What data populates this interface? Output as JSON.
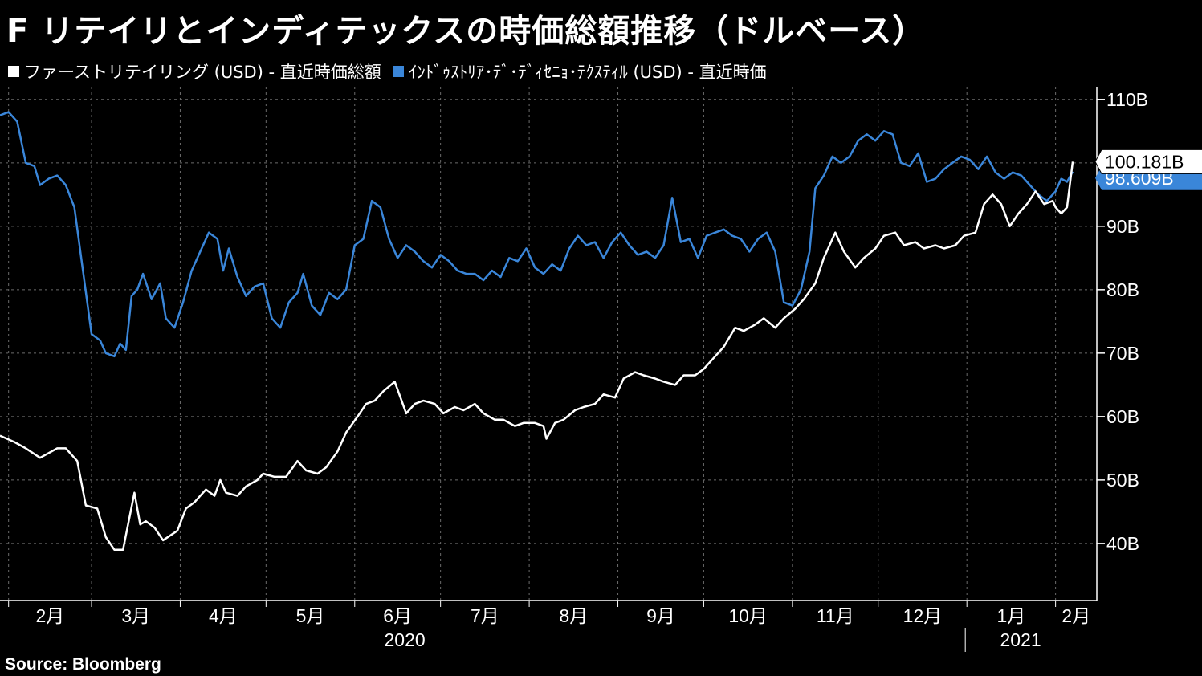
{
  "title": "F リテイリとインディテックスの時価総額推移（ドルベース）",
  "source": "Source:  Bloomberg",
  "colors": {
    "background": "#000000",
    "fast_retailing": "#ffffff",
    "inditex": "#3a86d9",
    "grid": "#6b6b6b"
  },
  "chart_data": {
    "type": "line",
    "title": "F リテイリとインディテックスの時価総額推移（ドルベース）",
    "xlabel": "",
    "ylabel": "",
    "ylim": [
      31,
      112
    ],
    "y_ticks": [
      40,
      50,
      60,
      70,
      80,
      90,
      100,
      110
    ],
    "y_tick_labels": [
      "40B",
      "50B",
      "60B",
      "70B",
      "80B",
      "90B",
      "100B",
      "110B"
    ],
    "x_range": [
      "2020-01-29",
      "2021-02-07"
    ],
    "month_ticks": [
      "2020-02-01",
      "2020-03-01",
      "2020-04-01",
      "2020-05-01",
      "2020-06-01",
      "2020-07-01",
      "2020-08-01",
      "2020-09-01",
      "2020-10-01",
      "2020-11-01",
      "2020-12-01",
      "2021-01-01",
      "2021-02-01"
    ],
    "month_labels": [
      "2月",
      "3月",
      "4月",
      "5月",
      "6月",
      "7月",
      "8月",
      "9月",
      "10月",
      "11月",
      "12月",
      "1月",
      "2月"
    ],
    "year_labels": [
      "2020",
      "2021"
    ],
    "grid": true,
    "legend_position": "top-left",
    "last_value_labels": [
      "100.181B",
      "98.609B"
    ],
    "series": [
      {
        "name": "ファーストリテイリング (USD) - 直近時価総額",
        "color": "#ffffff",
        "points": [
          [
            "2020-01-29",
            57.0
          ],
          [
            "2020-02-03",
            56.0
          ],
          [
            "2020-02-07",
            55.0
          ],
          [
            "2020-02-12",
            53.5
          ],
          [
            "2020-02-14",
            54.0
          ],
          [
            "2020-02-18",
            55.0
          ],
          [
            "2020-02-21",
            55.0
          ],
          [
            "2020-02-25",
            53.0
          ],
          [
            "2020-02-28",
            46.0
          ],
          [
            "2020-03-03",
            45.5
          ],
          [
            "2020-03-06",
            41.0
          ],
          [
            "2020-03-09",
            39.0
          ],
          [
            "2020-03-12",
            39.0
          ],
          [
            "2020-03-16",
            48.0
          ],
          [
            "2020-03-18",
            43.0
          ],
          [
            "2020-03-20",
            43.5
          ],
          [
            "2020-03-23",
            42.5
          ],
          [
            "2020-03-26",
            40.5
          ],
          [
            "2020-03-31",
            42.0
          ],
          [
            "2020-04-03",
            45.5
          ],
          [
            "2020-04-06",
            46.5
          ],
          [
            "2020-04-08",
            47.5
          ],
          [
            "2020-04-10",
            48.5
          ],
          [
            "2020-04-13",
            47.5
          ],
          [
            "2020-04-15",
            50.0
          ],
          [
            "2020-04-17",
            48.0
          ],
          [
            "2020-04-21",
            47.5
          ],
          [
            "2020-04-24",
            49.0
          ],
          [
            "2020-04-28",
            50.0
          ],
          [
            "2020-04-30",
            51.0
          ],
          [
            "2020-05-04",
            50.5
          ],
          [
            "2020-05-08",
            50.5
          ],
          [
            "2020-05-12",
            53.0
          ],
          [
            "2020-05-15",
            51.5
          ],
          [
            "2020-05-19",
            51.0
          ],
          [
            "2020-05-22",
            52.0
          ],
          [
            "2020-05-26",
            54.5
          ],
          [
            "2020-05-29",
            57.5
          ],
          [
            "2020-06-02",
            60.0
          ],
          [
            "2020-06-05",
            62.0
          ],
          [
            "2020-06-08",
            62.5
          ],
          [
            "2020-06-11",
            64.0
          ],
          [
            "2020-06-15",
            65.5
          ],
          [
            "2020-06-17",
            63.0
          ],
          [
            "2020-06-19",
            60.5
          ],
          [
            "2020-06-22",
            62.0
          ],
          [
            "2020-06-25",
            62.5
          ],
          [
            "2020-06-29",
            62.0
          ],
          [
            "2020-07-02",
            60.5
          ],
          [
            "2020-07-06",
            61.5
          ],
          [
            "2020-07-09",
            61.0
          ],
          [
            "2020-07-13",
            62.0
          ],
          [
            "2020-07-16",
            60.5
          ],
          [
            "2020-07-20",
            59.5
          ],
          [
            "2020-07-23",
            59.5
          ],
          [
            "2020-07-27",
            58.5
          ],
          [
            "2020-07-30",
            59.0
          ],
          [
            "2020-08-03",
            59.0
          ],
          [
            "2020-08-06",
            58.5
          ],
          [
            "2020-08-07",
            56.5
          ],
          [
            "2020-08-10",
            59.0
          ],
          [
            "2020-08-13",
            59.5
          ],
          [
            "2020-08-17",
            61.0
          ],
          [
            "2020-08-20",
            61.5
          ],
          [
            "2020-08-24",
            62.0
          ],
          [
            "2020-08-27",
            63.5
          ],
          [
            "2020-08-31",
            63.0
          ],
          [
            "2020-09-03",
            66.0
          ],
          [
            "2020-09-07",
            67.0
          ],
          [
            "2020-09-10",
            66.5
          ],
          [
            "2020-09-14",
            66.0
          ],
          [
            "2020-09-17",
            65.5
          ],
          [
            "2020-09-21",
            65.0
          ],
          [
            "2020-09-24",
            66.5
          ],
          [
            "2020-09-28",
            66.5
          ],
          [
            "2020-10-01",
            67.5
          ],
          [
            "2020-10-05",
            69.5
          ],
          [
            "2020-10-08",
            71.0
          ],
          [
            "2020-10-12",
            74.0
          ],
          [
            "2020-10-15",
            73.5
          ],
          [
            "2020-10-19",
            74.5
          ],
          [
            "2020-10-22",
            75.5
          ],
          [
            "2020-10-26",
            74.0
          ],
          [
            "2020-10-29",
            75.5
          ],
          [
            "2020-11-02",
            77.0
          ],
          [
            "2020-11-05",
            78.5
          ],
          [
            "2020-11-09",
            81.0
          ],
          [
            "2020-11-12",
            85.0
          ],
          [
            "2020-11-16",
            89.0
          ],
          [
            "2020-11-19",
            86.0
          ],
          [
            "2020-11-23",
            83.5
          ],
          [
            "2020-11-26",
            85.0
          ],
          [
            "2020-11-30",
            86.5
          ],
          [
            "2020-12-03",
            88.5
          ],
          [
            "2020-12-07",
            89.0
          ],
          [
            "2020-12-10",
            87.0
          ],
          [
            "2020-12-14",
            87.5
          ],
          [
            "2020-12-17",
            86.5
          ],
          [
            "2020-12-21",
            87.0
          ],
          [
            "2020-12-24",
            86.5
          ],
          [
            "2020-12-28",
            87.0
          ],
          [
            "2020-12-31",
            88.5
          ],
          [
            "2021-01-04",
            89.0
          ],
          [
            "2021-01-07",
            93.5
          ],
          [
            "2021-01-10",
            95.0
          ],
          [
            "2021-01-13",
            93.5
          ],
          [
            "2021-01-16",
            90.0
          ],
          [
            "2021-01-19",
            92.0
          ],
          [
            "2021-01-22",
            93.5
          ],
          [
            "2021-01-25",
            95.5
          ],
          [
            "2021-01-28",
            93.5
          ],
          [
            "2021-01-31",
            94.0
          ],
          [
            "2021-02-01",
            93.0
          ],
          [
            "2021-02-03",
            92.0
          ],
          [
            "2021-02-05",
            93.0
          ],
          [
            "2021-02-07",
            100.181
          ]
        ]
      },
      {
        "name": "ｲﾝﾄﾞｩｽﾄﾘｱ･ﾃﾞ･ﾃﾞｨｾﾆｮ･ﾃｸｽﾃｨﾙ (USD) - 直近時価",
        "color": "#3a86d9",
        "points": [
          [
            "2020-01-29",
            107.5
          ],
          [
            "2020-02-01",
            108.0
          ],
          [
            "2020-02-04",
            106.5
          ],
          [
            "2020-02-07",
            100.0
          ],
          [
            "2020-02-10",
            99.5
          ],
          [
            "2020-02-12",
            96.5
          ],
          [
            "2020-02-15",
            97.5
          ],
          [
            "2020-02-18",
            98.0
          ],
          [
            "2020-02-21",
            96.5
          ],
          [
            "2020-02-24",
            93.0
          ],
          [
            "2020-02-27",
            83.0
          ],
          [
            "2020-03-01",
            73.0
          ],
          [
            "2020-03-04",
            72.0
          ],
          [
            "2020-03-06",
            70.0
          ],
          [
            "2020-03-09",
            69.5
          ],
          [
            "2020-03-11",
            71.5
          ],
          [
            "2020-03-13",
            70.5
          ],
          [
            "2020-03-15",
            79.0
          ],
          [
            "2020-03-17",
            80.0
          ],
          [
            "2020-03-19",
            82.5
          ],
          [
            "2020-03-22",
            78.5
          ],
          [
            "2020-03-25",
            81.0
          ],
          [
            "2020-03-27",
            75.5
          ],
          [
            "2020-03-30",
            74.0
          ],
          [
            "2020-04-02",
            78.0
          ],
          [
            "2020-04-05",
            83.0
          ],
          [
            "2020-04-08",
            86.0
          ],
          [
            "2020-04-11",
            89.0
          ],
          [
            "2020-04-14",
            88.0
          ],
          [
            "2020-04-16",
            83.0
          ],
          [
            "2020-04-18",
            86.5
          ],
          [
            "2020-04-21",
            82.0
          ],
          [
            "2020-04-24",
            79.0
          ],
          [
            "2020-04-27",
            80.5
          ],
          [
            "2020-04-30",
            81.0
          ],
          [
            "2020-05-03",
            75.5
          ],
          [
            "2020-05-06",
            74.0
          ],
          [
            "2020-05-09",
            78.0
          ],
          [
            "2020-05-12",
            79.5
          ],
          [
            "2020-05-14",
            82.5
          ],
          [
            "2020-05-17",
            77.5
          ],
          [
            "2020-05-20",
            76.0
          ],
          [
            "2020-05-23",
            79.5
          ],
          [
            "2020-05-26",
            78.5
          ],
          [
            "2020-05-29",
            80.0
          ],
          [
            "2020-06-01",
            87.0
          ],
          [
            "2020-06-04",
            88.0
          ],
          [
            "2020-06-07",
            94.0
          ],
          [
            "2020-06-10",
            93.0
          ],
          [
            "2020-06-13",
            88.0
          ],
          [
            "2020-06-16",
            85.0
          ],
          [
            "2020-06-19",
            87.0
          ],
          [
            "2020-06-22",
            86.0
          ],
          [
            "2020-06-25",
            84.5
          ],
          [
            "2020-06-28",
            83.5
          ],
          [
            "2020-07-01",
            85.5
          ],
          [
            "2020-07-04",
            84.5
          ],
          [
            "2020-07-07",
            83.0
          ],
          [
            "2020-07-10",
            82.5
          ],
          [
            "2020-07-13",
            82.5
          ],
          [
            "2020-07-16",
            81.5
          ],
          [
            "2020-07-19",
            83.0
          ],
          [
            "2020-07-22",
            82.0
          ],
          [
            "2020-07-25",
            85.0
          ],
          [
            "2020-07-28",
            84.5
          ],
          [
            "2020-07-31",
            86.5
          ],
          [
            "2020-08-03",
            83.5
          ],
          [
            "2020-08-06",
            82.5
          ],
          [
            "2020-08-09",
            84.0
          ],
          [
            "2020-08-12",
            83.0
          ],
          [
            "2020-08-15",
            86.5
          ],
          [
            "2020-08-18",
            88.5
          ],
          [
            "2020-08-21",
            87.0
          ],
          [
            "2020-08-24",
            87.5
          ],
          [
            "2020-08-27",
            85.0
          ],
          [
            "2020-08-30",
            87.5
          ],
          [
            "2020-09-02",
            89.0
          ],
          [
            "2020-09-05",
            87.0
          ],
          [
            "2020-09-08",
            85.5
          ],
          [
            "2020-09-11",
            86.0
          ],
          [
            "2020-09-14",
            85.0
          ],
          [
            "2020-09-17",
            87.0
          ],
          [
            "2020-09-20",
            94.5
          ],
          [
            "2020-09-23",
            87.5
          ],
          [
            "2020-09-26",
            88.0
          ],
          [
            "2020-09-29",
            85.0
          ],
          [
            "2020-10-02",
            88.5
          ],
          [
            "2020-10-05",
            89.0
          ],
          [
            "2020-10-08",
            89.5
          ],
          [
            "2020-10-11",
            88.5
          ],
          [
            "2020-10-14",
            88.0
          ],
          [
            "2020-10-17",
            86.0
          ],
          [
            "2020-10-20",
            88.0
          ],
          [
            "2020-10-23",
            89.0
          ],
          [
            "2020-10-26",
            86.0
          ],
          [
            "2020-10-29",
            78.0
          ],
          [
            "2020-11-01",
            77.5
          ],
          [
            "2020-11-04",
            80.0
          ],
          [
            "2020-11-07",
            86.0
          ],
          [
            "2020-11-09",
            96.0
          ],
          [
            "2020-11-12",
            98.0
          ],
          [
            "2020-11-15",
            101.0
          ],
          [
            "2020-11-18",
            100.0
          ],
          [
            "2020-11-21",
            101.0
          ],
          [
            "2020-11-24",
            103.5
          ],
          [
            "2020-11-27",
            104.5
          ],
          [
            "2020-11-30",
            103.5
          ],
          [
            "2020-12-03",
            105.0
          ],
          [
            "2020-12-06",
            104.5
          ],
          [
            "2020-12-09",
            100.0
          ],
          [
            "2020-12-12",
            99.5
          ],
          [
            "2020-12-15",
            101.5
          ],
          [
            "2020-12-18",
            97.0
          ],
          [
            "2020-12-21",
            97.5
          ],
          [
            "2020-12-24",
            99.0
          ],
          [
            "2020-12-27",
            100.0
          ],
          [
            "2020-12-30",
            101.0
          ],
          [
            "2021-01-02",
            100.5
          ],
          [
            "2021-01-05",
            99.0
          ],
          [
            "2021-01-08",
            101.0
          ],
          [
            "2021-01-11",
            98.5
          ],
          [
            "2021-01-14",
            97.5
          ],
          [
            "2021-01-17",
            98.5
          ],
          [
            "2021-01-20",
            98.0
          ],
          [
            "2021-01-23",
            96.5
          ],
          [
            "2021-01-26",
            95.0
          ],
          [
            "2021-01-29",
            94.0
          ],
          [
            "2021-02-01",
            95.5
          ],
          [
            "2021-02-03",
            97.5
          ],
          [
            "2021-02-05",
            97.0
          ],
          [
            "2021-02-07",
            98.609
          ]
        ]
      }
    ]
  }
}
